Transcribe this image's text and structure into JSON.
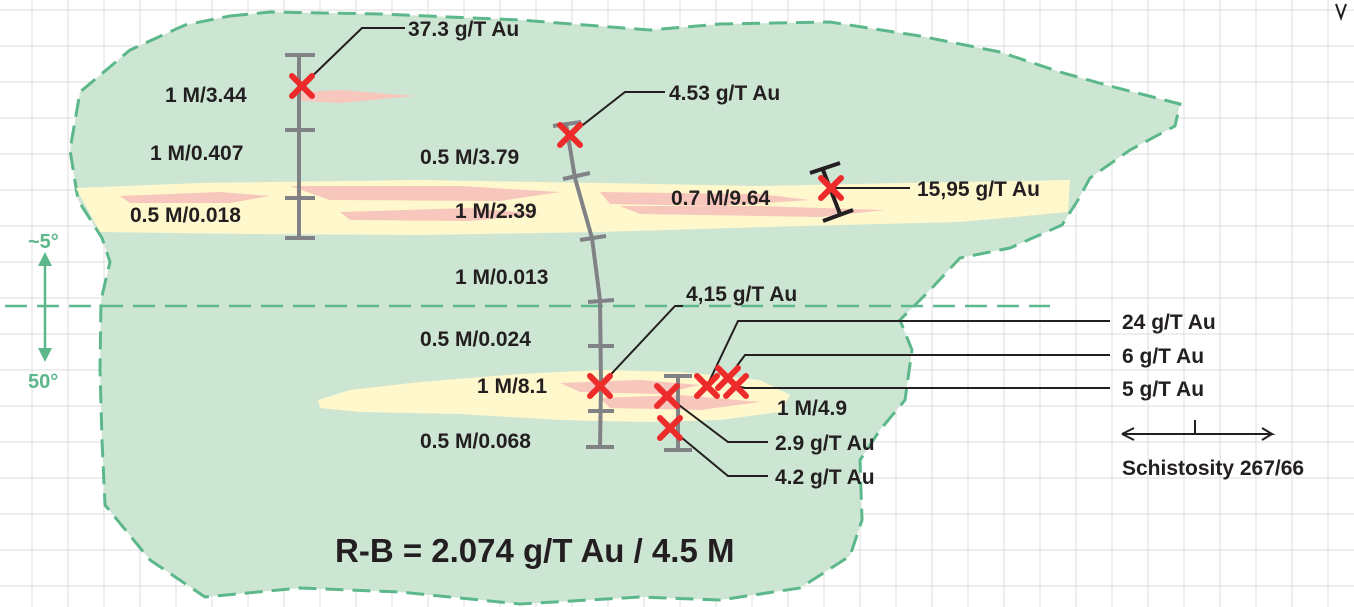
{
  "colors": {
    "grid": "#dcdcdc",
    "outcrop_fill": "#cde6d4",
    "outcrop_border": "#5cb88a",
    "vein_yellow": "#fff8cc",
    "vein_pink": "#f7c6bc",
    "sample_mark": "#ee2b2b",
    "channel_line": "#808285",
    "text": "#231f20"
  },
  "title": "R-B = 2.074 g/T Au / 4.5 M",
  "orientation": {
    "angle_top": "~5°",
    "angle_bottom": "50°"
  },
  "schistosity": "Schistosity 267/66",
  "channel_intervals": [
    "1 M/3.44",
    "1 M/0.407",
    "0.5 M/0.018",
    "0.5 M/3.79",
    "1 M/2.39",
    "1 M/0.013",
    "0.5 M/0.024",
    "1 M/8.1",
    "0.5 M/0.068",
    "0.7 M/9.64",
    "1 M/4.9"
  ],
  "grab_samples": [
    "37.3 g/T Au",
    "4.53 g/T Au",
    "15,95 g/T Au",
    "4,15 g/T Au",
    "24 g/T Au",
    "6 g/T Au",
    "5 g/T Au",
    "2.9 g/T Au",
    "4.2 g/T Au"
  ]
}
